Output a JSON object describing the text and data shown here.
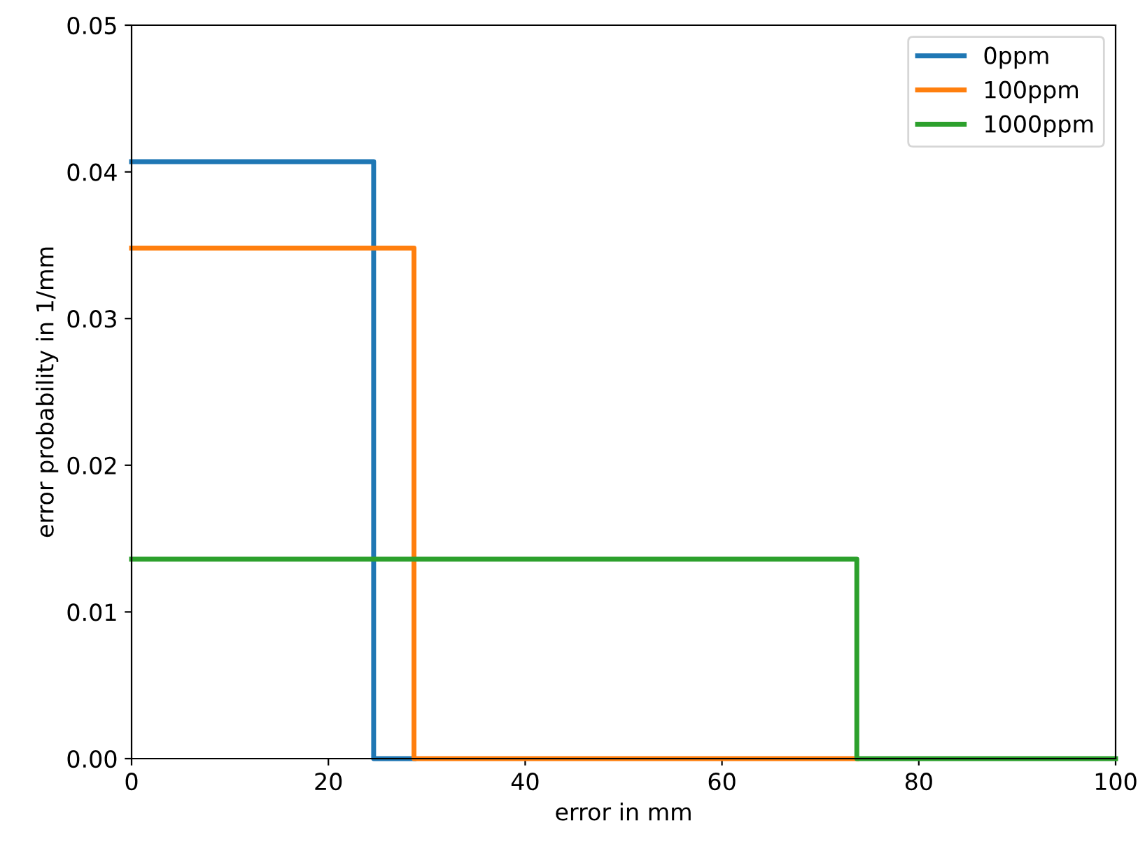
{
  "chart_data": {
    "type": "line",
    "xlabel": "error in mm",
    "ylabel": "error probability in 1/mm",
    "xlim": [
      0,
      100
    ],
    "xticks": [
      0,
      20,
      40,
      60,
      80,
      100
    ],
    "ylim": [
      0,
      0.05
    ],
    "yticks": [
      {
        "value": 0,
        "label": "0.00"
      },
      {
        "value": 0.01,
        "label": "0.01"
      },
      {
        "value": 0.02,
        "label": "0.02"
      },
      {
        "value": 0.03,
        "label": "0.03"
      },
      {
        "value": 0.04,
        "label": "0.04"
      },
      {
        "value": 0.05,
        "label": "0.05"
      }
    ],
    "grid": false,
    "legend": "top right",
    "line_style": "solid",
    "marker": "none",
    "series": [
      {
        "name": "0ppm",
        "color": "#1f77b4",
        "x": [
          0,
          24.6,
          24.6,
          28.7
        ],
        "values": [
          0.0407,
          0.0407,
          0,
          0
        ]
      },
      {
        "name": "100ppm",
        "color": "#ff7f0e",
        "x": [
          0,
          28.7,
          28.7,
          73.7
        ],
        "values": [
          0.0348,
          0.0348,
          0,
          0
        ]
      },
      {
        "name": "1000ppm",
        "color": "#2ca02c",
        "x": [
          0,
          73.7,
          73.7,
          100
        ],
        "values": [
          0.0136,
          0.0136,
          0,
          0
        ]
      }
    ]
  }
}
